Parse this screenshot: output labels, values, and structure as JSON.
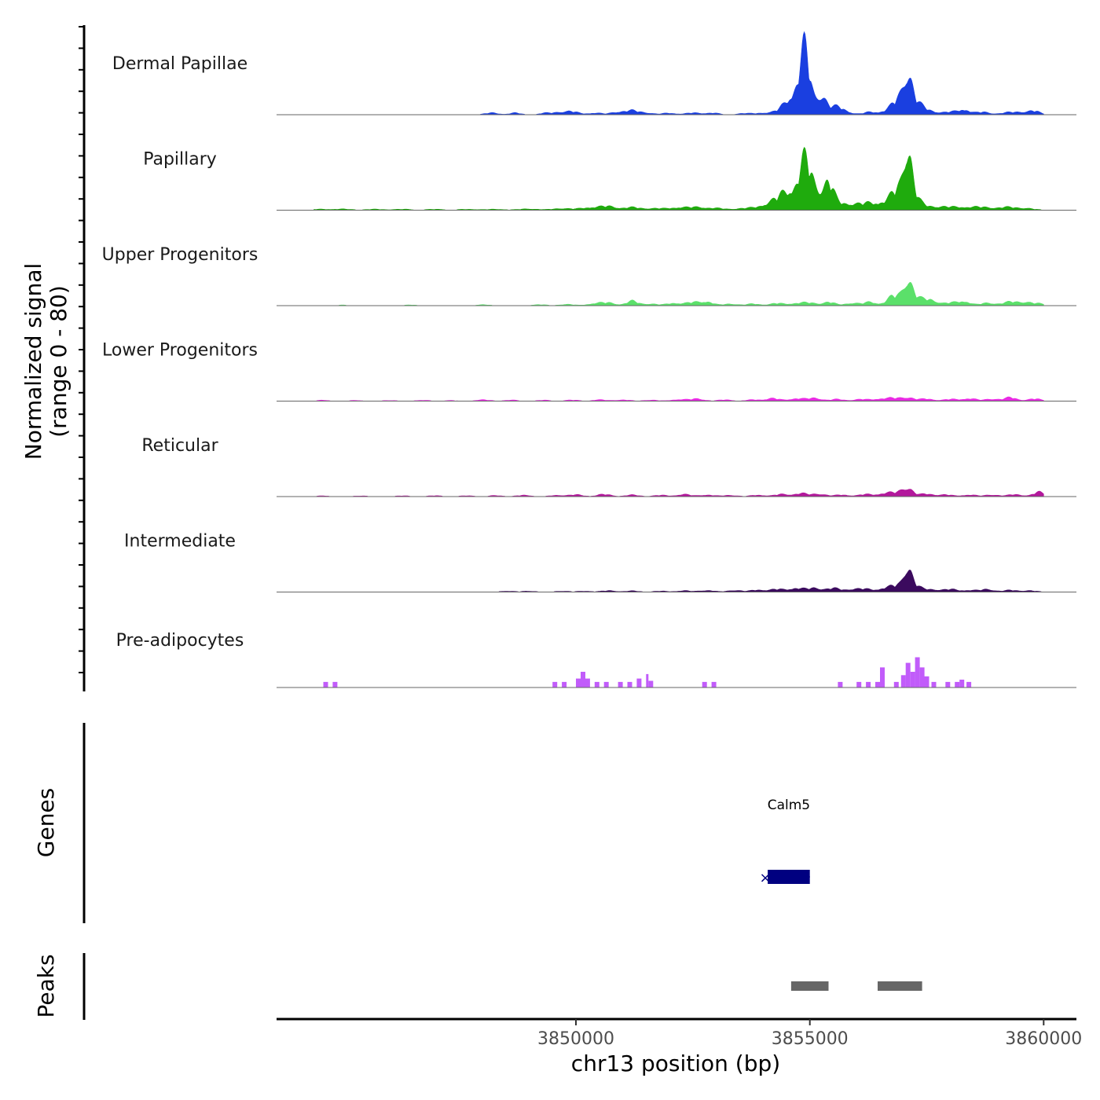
{
  "chart_data": {
    "type": "area",
    "chromosome": "chr13",
    "xlabel": "chr13 position (bp)",
    "ylabel_line1": "Normalized signal",
    "ylabel_line2": "(range 0 - 80)",
    "ylim": [
      0,
      80
    ],
    "xlim": [
      3843600,
      3860700
    ],
    "x_ticks": [
      3850000,
      3855000,
      3860000
    ],
    "x_tick_labels": [
      "3850000",
      "3855000",
      "3860000"
    ],
    "genes_label": "Genes",
    "peaks_label": "Peaks",
    "tracks": [
      {
        "name": "Dermal Papillae",
        "color": "#1a3fe0",
        "peaks": [
          [
            3848200,
            2,
            150
          ],
          [
            3848700,
            2,
            120
          ],
          [
            3849300,
            1.5,
            100
          ],
          [
            3849600,
            2.5,
            150
          ],
          [
            3849900,
            3.5,
            150
          ],
          [
            3850400,
            2,
            150
          ],
          [
            3850900,
            3,
            150
          ],
          [
            3851200,
            4,
            150
          ],
          [
            3851500,
            2,
            150
          ],
          [
            3852000,
            1.8,
            150
          ],
          [
            3852500,
            2,
            150
          ],
          [
            3852900,
            2,
            150
          ],
          [
            3853600,
            1.5,
            150
          ],
          [
            3854000,
            2,
            150
          ],
          [
            3854400,
            3,
            150
          ],
          [
            3854700,
            10,
            150
          ],
          [
            3854900,
            52,
            100
          ],
          [
            3854800,
            20,
            250
          ],
          [
            3855250,
            18,
            100
          ],
          [
            3855500,
            6,
            150
          ],
          [
            3855700,
            5,
            150
          ],
          [
            3856300,
            3,
            150
          ],
          [
            3856700,
            5,
            150
          ],
          [
            3856900,
            12,
            120
          ],
          [
            3857100,
            35,
            90
          ],
          [
            3857200,
            15,
            200
          ],
          [
            3857600,
            3,
            150
          ],
          [
            3858000,
            3,
            150
          ],
          [
            3858300,
            6,
            120
          ],
          [
            3858700,
            3,
            150
          ],
          [
            3859200,
            2,
            150
          ],
          [
            3859500,
            3,
            150
          ],
          [
            3859800,
            4,
            120
          ]
        ]
      },
      {
        "name": "Papillary",
        "color": "#1fab0d",
        "peaks": [
          [
            3844500,
            1,
            200
          ],
          [
            3845000,
            1.2,
            200
          ],
          [
            3845700,
            1,
            200
          ],
          [
            3846300,
            1,
            200
          ],
          [
            3847000,
            1,
            200
          ],
          [
            3847700,
            1,
            200
          ],
          [
            3848300,
            1,
            200
          ],
          [
            3849000,
            1.5,
            200
          ],
          [
            3849700,
            2,
            200
          ],
          [
            3850300,
            3,
            200
          ],
          [
            3850700,
            4,
            180
          ],
          [
            3851200,
            3,
            180
          ],
          [
            3851700,
            2,
            200
          ],
          [
            3852200,
            3,
            180
          ],
          [
            3852600,
            3,
            180
          ],
          [
            3853000,
            2,
            200
          ],
          [
            3853600,
            2,
            200
          ],
          [
            3854100,
            6,
            200
          ],
          [
            3854500,
            12,
            200
          ],
          [
            3854900,
            30,
            120
          ],
          [
            3854800,
            15,
            300
          ],
          [
            3855000,
            10,
            200
          ],
          [
            3855400,
            20,
            100
          ],
          [
            3855300,
            10,
            250
          ],
          [
            3855800,
            6,
            200
          ],
          [
            3856200,
            5,
            200
          ],
          [
            3856600,
            8,
            250
          ],
          [
            3856900,
            18,
            150
          ],
          [
            3857100,
            50,
            80
          ],
          [
            3857150,
            20,
            150
          ],
          [
            3857500,
            4,
            200
          ],
          [
            3857900,
            3,
            200
          ],
          [
            3858300,
            3,
            200
          ],
          [
            3858700,
            3,
            200
          ],
          [
            3859200,
            3,
            200
          ],
          [
            3859600,
            2,
            200
          ]
        ]
      },
      {
        "name": "Upper Progenitors",
        "color": "#5be06a",
        "peaks": [
          [
            3845000,
            0.6,
            150
          ],
          [
            3846500,
            0.8,
            150
          ],
          [
            3848000,
            1,
            150
          ],
          [
            3849200,
            1.2,
            150
          ],
          [
            3849800,
            1.5,
            150
          ],
          [
            3850400,
            2.5,
            150
          ],
          [
            3850700,
            3,
            150
          ],
          [
            3851200,
            5,
            130
          ],
          [
            3851600,
            2,
            150
          ],
          [
            3852100,
            3,
            150
          ],
          [
            3852500,
            3.5,
            150
          ],
          [
            3852800,
            4.5,
            130
          ],
          [
            3853300,
            2,
            150
          ],
          [
            3853800,
            2,
            150
          ],
          [
            3854300,
            2.5,
            150
          ],
          [
            3854700,
            2.5,
            150
          ],
          [
            3855000,
            3,
            150
          ],
          [
            3855400,
            4,
            130
          ],
          [
            3855900,
            3,
            150
          ],
          [
            3856300,
            4,
            130
          ],
          [
            3856800,
            10,
            150
          ],
          [
            3857100,
            22,
            90
          ],
          [
            3857200,
            10,
            200
          ],
          [
            3857600,
            6,
            130
          ],
          [
            3858000,
            3,
            150
          ],
          [
            3858300,
            5,
            130
          ],
          [
            3858800,
            3,
            150
          ],
          [
            3859300,
            4,
            180
          ],
          [
            3859600,
            3,
            150
          ],
          [
            3859900,
            2,
            150
          ]
        ]
      },
      {
        "name": "Lower Progenitors",
        "color": "#e82be2",
        "peaks": [
          [
            3844600,
            1,
            150
          ],
          [
            3845300,
            0.8,
            150
          ],
          [
            3846000,
            0.8,
            150
          ],
          [
            3846700,
            1,
            150
          ],
          [
            3847300,
            0.8,
            150
          ],
          [
            3848000,
            1.5,
            150
          ],
          [
            3848600,
            1.2,
            150
          ],
          [
            3849300,
            1,
            150
          ],
          [
            3849900,
            1.2,
            150
          ],
          [
            3850500,
            1.5,
            150
          ],
          [
            3851000,
            1.5,
            150
          ],
          [
            3851600,
            1.2,
            150
          ],
          [
            3852200,
            2,
            150
          ],
          [
            3852600,
            2.5,
            150
          ],
          [
            3853200,
            1.5,
            150
          ],
          [
            3853800,
            1.5,
            150
          ],
          [
            3854200,
            3,
            150
          ],
          [
            3854700,
            3,
            150
          ],
          [
            3855100,
            3.5,
            150
          ],
          [
            3855600,
            2,
            150
          ],
          [
            3856100,
            2,
            150
          ],
          [
            3856500,
            2.5,
            150
          ],
          [
            3856800,
            3,
            150
          ],
          [
            3857100,
            4,
            130
          ],
          [
            3857500,
            2.5,
            150
          ],
          [
            3858000,
            2,
            150
          ],
          [
            3858400,
            3,
            150
          ],
          [
            3858900,
            2.5,
            150
          ],
          [
            3859300,
            4,
            130
          ],
          [
            3859800,
            2.5,
            150
          ]
        ]
      },
      {
        "name": "Reticular",
        "color": "#b3189c",
        "peaks": [
          [
            3844600,
            0.8,
            150
          ],
          [
            3845400,
            0.8,
            150
          ],
          [
            3846300,
            0.8,
            150
          ],
          [
            3847000,
            1,
            150
          ],
          [
            3847700,
            1,
            150
          ],
          [
            3848300,
            1.2,
            150
          ],
          [
            3848900,
            1.5,
            150
          ],
          [
            3849600,
            1.5,
            150
          ],
          [
            3850000,
            2,
            150
          ],
          [
            3850600,
            2.5,
            150
          ],
          [
            3851200,
            1.8,
            150
          ],
          [
            3851800,
            1.5,
            150
          ],
          [
            3852300,
            2.5,
            150
          ],
          [
            3852800,
            2,
            150
          ],
          [
            3853300,
            1.5,
            150
          ],
          [
            3853900,
            1.8,
            150
          ],
          [
            3854400,
            2.5,
            150
          ],
          [
            3854800,
            3.5,
            150
          ],
          [
            3855200,
            3,
            150
          ],
          [
            3855700,
            2,
            150
          ],
          [
            3856200,
            2.5,
            150
          ],
          [
            3856600,
            3.5,
            150
          ],
          [
            3856900,
            4,
            150
          ],
          [
            3857100,
            9,
            110
          ],
          [
            3857500,
            3,
            150
          ],
          [
            3857900,
            2,
            150
          ],
          [
            3858400,
            2,
            150
          ],
          [
            3858900,
            2,
            150
          ],
          [
            3859400,
            2.5,
            150
          ],
          [
            3859900,
            5,
            120
          ]
        ]
      },
      {
        "name": "Intermediate",
        "color": "#3b0a5e",
        "peaks": [
          [
            3848500,
            1,
            150
          ],
          [
            3849000,
            1,
            150
          ],
          [
            3849700,
            1,
            150
          ],
          [
            3850200,
            1,
            150
          ],
          [
            3850700,
            1.5,
            150
          ],
          [
            3851200,
            1.2,
            150
          ],
          [
            3851800,
            1,
            150
          ],
          [
            3852300,
            1.5,
            150
          ],
          [
            3852800,
            2,
            150
          ],
          [
            3853400,
            2,
            150
          ],
          [
            3853900,
            2.5,
            150
          ],
          [
            3854300,
            3,
            150
          ],
          [
            3854700,
            4.5,
            150
          ],
          [
            3855100,
            4.5,
            150
          ],
          [
            3855500,
            4,
            150
          ],
          [
            3855900,
            3,
            150
          ],
          [
            3856200,
            3,
            150
          ],
          [
            3856600,
            4,
            150
          ],
          [
            3856900,
            7,
            150
          ],
          [
            3857100,
            22,
            80
          ],
          [
            3857200,
            8,
            150
          ],
          [
            3857600,
            3,
            150
          ],
          [
            3858000,
            3,
            150
          ],
          [
            3858400,
            2,
            150
          ],
          [
            3858800,
            3,
            150
          ],
          [
            3859300,
            2,
            150
          ],
          [
            3859700,
            1.5,
            150
          ]
        ]
      },
      {
        "name": "Pre-adipocytes",
        "color": "#c15cfa",
        "bars": [
          [
            3844600,
            3844700,
            5
          ],
          [
            3844800,
            3844900,
            5
          ],
          [
            3849500,
            3849600,
            5
          ],
          [
            3849700,
            3849800,
            5
          ],
          [
            3850000,
            3850100,
            8
          ],
          [
            3850100,
            3850200,
            14
          ],
          [
            3850200,
            3850300,
            8
          ],
          [
            3850400,
            3850500,
            5
          ],
          [
            3850600,
            3850700,
            5
          ],
          [
            3850900,
            3851000,
            5
          ],
          [
            3851100,
            3851200,
            5
          ],
          [
            3851300,
            3851400,
            8
          ],
          [
            3851500,
            3851550,
            12
          ],
          [
            3851550,
            3851650,
            6
          ],
          [
            3852700,
            3852800,
            5
          ],
          [
            3852900,
            3853000,
            5
          ],
          [
            3855600,
            3855700,
            5
          ],
          [
            3856000,
            3856100,
            5
          ],
          [
            3856200,
            3856300,
            5
          ],
          [
            3856400,
            3856500,
            5
          ],
          [
            3856500,
            3856600,
            18
          ],
          [
            3856800,
            3856900,
            5
          ],
          [
            3856950,
            3857050,
            11
          ],
          [
            3857050,
            3857150,
            22
          ],
          [
            3857150,
            3857250,
            14
          ],
          [
            3857250,
            3857350,
            27
          ],
          [
            3857350,
            3857450,
            18
          ],
          [
            3857450,
            3857550,
            10
          ],
          [
            3857600,
            3857700,
            5
          ],
          [
            3857900,
            3858000,
            5
          ],
          [
            3858100,
            3858200,
            5
          ],
          [
            3858200,
            3858300,
            7
          ],
          [
            3858350,
            3858450,
            5
          ]
        ]
      }
    ],
    "genes": [
      {
        "name": "Calm5",
        "start": 3854100,
        "end": 3855000,
        "strand": "-",
        "color": "#000080"
      }
    ],
    "peaks": [
      [
        3854600,
        3855400
      ],
      [
        3856450,
        3857400
      ]
    ]
  }
}
